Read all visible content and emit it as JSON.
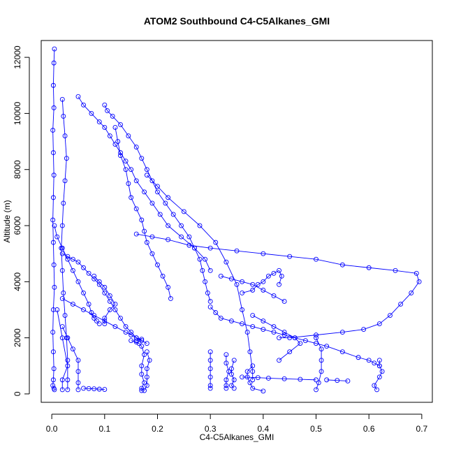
{
  "chart_data": {
    "type": "scatter",
    "title": "ATOM2 Southbound C4-C5Alkanes_GMI",
    "xlabel": "C4-C5Alkanes_GMI",
    "ylabel": "Altitude (m)",
    "xlim": [
      -0.02,
      0.72
    ],
    "ylim": [
      -300,
      12600
    ],
    "xticks": [
      0.0,
      0.1,
      0.2,
      0.3,
      0.4,
      0.5,
      0.6,
      0.7
    ],
    "xtick_labels": [
      "0.0",
      "0.1",
      "0.2",
      "0.3",
      "0.4",
      "0.5",
      "0.6",
      "0.7"
    ],
    "yticks": [
      0,
      2000,
      4000,
      6000,
      8000,
      10000,
      12000
    ],
    "ytick_labels": [
      "0",
      "2000",
      "4000",
      "6000",
      "8000",
      "10000",
      "12000"
    ],
    "grid": false,
    "marker": "open-circle",
    "color": "#0000ff",
    "series": [
      {
        "x": [
          0.005,
          0.004,
          0.003,
          0.004,
          0.002,
          0.003,
          0.004,
          0.003,
          0.002,
          0.003,
          0.004,
          0.005,
          0.003,
          0.002,
          0.003,
          0.004,
          0.003,
          0.002,
          0.004,
          0.005
        ],
        "y": [
          12300,
          11800,
          11000,
          10200,
          9400,
          8600,
          7800,
          7000,
          6200,
          5400,
          4600,
          3800,
          3000,
          2200,
          1500,
          900,
          500,
          300,
          200,
          150
        ]
      },
      {
        "x": [
          0.02,
          0.022,
          0.025,
          0.028,
          0.025,
          0.022,
          0.02,
          0.018,
          0.02,
          0.022,
          0.025,
          0.028,
          0.03,
          0.03,
          0.03
        ],
        "y": [
          10500,
          9900,
          9200,
          8400,
          7600,
          6800,
          6000,
          5200,
          4400,
          3600,
          2800,
          2000,
          1200,
          500,
          150
        ]
      },
      {
        "x": [
          0.05,
          0.06,
          0.075,
          0.09,
          0.1,
          0.11,
          0.12,
          0.13,
          0.14,
          0.15,
          0.16,
          0.175,
          0.19,
          0.205,
          0.22,
          0.245,
          0.27,
          0.29,
          0.3
        ],
        "y": [
          10600,
          10300,
          10000,
          9700,
          9500,
          9200,
          8900,
          8600,
          8300,
          8000,
          7600,
          7200,
          6800,
          6400,
          6000,
          5600,
          5200,
          4800,
          4400
        ]
      },
      {
        "x": [
          0.1,
          0.105,
          0.115,
          0.13,
          0.145,
          0.16,
          0.17,
          0.18,
          0.19,
          0.2,
          0.215,
          0.23,
          0.245,
          0.26,
          0.27,
          0.28,
          0.285,
          0.29,
          0.295,
          0.3
        ],
        "y": [
          10300,
          10100,
          9900,
          9600,
          9200,
          8800,
          8400,
          8000,
          7600,
          7200,
          6800,
          6400,
          6000,
          5600,
          5200,
          4800,
          4400,
          4000,
          3600,
          3300
        ]
      },
      {
        "x": [
          0.12,
          0.125,
          0.13,
          0.14,
          0.145,
          0.15,
          0.16,
          0.17,
          0.175,
          0.18,
          0.19,
          0.2,
          0.21,
          0.22,
          0.225
        ],
        "y": [
          9500,
          9000,
          8500,
          8000,
          7500,
          7000,
          6600,
          6200,
          5800,
          5400,
          5000,
          4600,
          4200,
          3800,
          3400
        ]
      },
      {
        "x": [
          0.18,
          0.2,
          0.22,
          0.25,
          0.28,
          0.31,
          0.33,
          0.35,
          0.36,
          0.37,
          0.375,
          0.38,
          0.38
        ],
        "y": [
          7800,
          7400,
          7000,
          6500,
          6000,
          5400,
          4700,
          3900,
          3000,
          2200,
          1500,
          800,
          500
        ]
      },
      {
        "x": [
          0.16,
          0.19,
          0.22,
          0.26,
          0.3,
          0.35,
          0.4,
          0.45,
          0.5,
          0.55,
          0.6,
          0.65,
          0.69,
          0.695,
          0.68,
          0.66,
          0.64,
          0.62,
          0.59,
          0.55,
          0.5,
          0.45,
          0.43
        ],
        "y": [
          5700,
          5600,
          5500,
          5300,
          5200,
          5100,
          5000,
          4900,
          4800,
          4600,
          4500,
          4400,
          4300,
          4000,
          3600,
          3200,
          2800,
          2500,
          2300,
          2200,
          2100,
          2000,
          2000
        ]
      },
      {
        "x": [
          0.02,
          0.03,
          0.04,
          0.05,
          0.06,
          0.07,
          0.08,
          0.09,
          0.1,
          0.11,
          0.12,
          0.13,
          0.14,
          0.15,
          0.16,
          0.17,
          0.18
        ],
        "y": [
          5000,
          4900,
          4800,
          4700,
          4500,
          4300,
          4100,
          3900,
          3600,
          3300,
          3000,
          2700,
          2400,
          2200,
          2000,
          1900,
          1800
        ]
      },
      {
        "x": [
          0.005,
          0.01,
          0.02,
          0.03,
          0.04,
          0.05,
          0.06,
          0.07,
          0.075,
          0.08,
          0.085,
          0.09
        ],
        "y": [
          6000,
          5600,
          5200,
          4800,
          4400,
          4000,
          3600,
          3200,
          2900,
          2700,
          2600,
          2500
        ]
      },
      {
        "x": [
          0.15,
          0.16,
          0.165,
          0.17,
          0.175,
          0.17,
          0.17,
          0.175,
          0.17,
          0.17
        ],
        "y": [
          1900,
          1850,
          1800,
          1700,
          1400,
          1000,
          700,
          400,
          200,
          120
        ]
      },
      {
        "x": [
          0.18,
          0.185,
          0.18,
          0.18,
          0.18,
          0.175
        ],
        "y": [
          1500,
          1200,
          900,
          600,
          300,
          120
        ]
      },
      {
        "x": [
          0.3,
          0.3,
          0.3,
          0.3,
          0.3,
          0.3
        ],
        "y": [
          1500,
          1200,
          900,
          600,
          300,
          200
        ]
      },
      {
        "x": [
          0.33,
          0.33,
          0.335,
          0.33,
          0.33,
          0.33
        ],
        "y": [
          1400,
          1100,
          800,
          500,
          300,
          200
        ]
      },
      {
        "x": [
          0.345,
          0.34,
          0.34,
          0.345,
          0.34,
          0.345
        ],
        "y": [
          1200,
          900,
          700,
          500,
          300,
          200
        ]
      },
      {
        "x": [
          0.38,
          0.37,
          0.37,
          0.375,
          0.38,
          0.4
        ],
        "y": [
          1000,
          800,
          600,
          400,
          200,
          100
        ]
      },
      {
        "x": [
          0.5,
          0.51,
          0.51,
          0.51,
          0.505,
          0.5
        ],
        "y": [
          2000,
          1600,
          1200,
          800,
          400,
          150
        ]
      },
      {
        "x": [
          0.62,
          0.62,
          0.625,
          0.62,
          0.61,
          0.615
        ],
        "y": [
          1200,
          1000,
          800,
          600,
          300,
          150
        ]
      },
      {
        "x": [
          0.36,
          0.39,
          0.41,
          0.44,
          0.47,
          0.5
        ],
        "y": [
          600,
          580,
          560,
          540,
          520,
          500
        ]
      },
      {
        "x": [
          0.52,
          0.54,
          0.56
        ],
        "y": [
          500,
          480,
          460
        ]
      },
      {
        "x": [
          0.3,
          0.31,
          0.32,
          0.34,
          0.36,
          0.38,
          0.4,
          0.42,
          0.44,
          0.46,
          0.48,
          0.5,
          0.52,
          0.55,
          0.58,
          0.6,
          0.61,
          0.62
        ],
        "y": [
          3100,
          2900,
          2700,
          2600,
          2500,
          2400,
          2300,
          2200,
          2100,
          2000,
          1900,
          1800,
          1700,
          1500,
          1300,
          1200,
          1100,
          1000
        ]
      },
      {
        "x": [
          0.32,
          0.34,
          0.36,
          0.38,
          0.4,
          0.42,
          0.44
        ],
        "y": [
          4200,
          4100,
          4000,
          3900,
          3700,
          3500,
          3300
        ]
      },
      {
        "x": [
          0.36,
          0.38,
          0.39,
          0.4,
          0.41,
          0.42,
          0.43,
          0.435,
          0.43
        ],
        "y": [
          3600,
          3700,
          3900,
          4000,
          4200,
          4300,
          4400,
          4200,
          3900
        ]
      },
      {
        "x": [
          0.38,
          0.4,
          0.42,
          0.44,
          0.46,
          0.47,
          0.45,
          0.43
        ],
        "y": [
          2800,
          2600,
          2400,
          2200,
          2000,
          1800,
          1500,
          1200
        ]
      },
      {
        "x": [
          0.08,
          0.09,
          0.1,
          0.11,
          0.12,
          0.11,
          0.1,
          0.1
        ],
        "y": [
          4200,
          4000,
          3800,
          3500,
          3200,
          3000,
          2700,
          2500
        ]
      },
      {
        "x": [
          0.02,
          0.04,
          0.06,
          0.08,
          0.1,
          0.12,
          0.14,
          0.15,
          0.16,
          0.17,
          0.16
        ],
        "y": [
          3400,
          3200,
          3000,
          2800,
          2600,
          2400,
          2200,
          2100,
          2000,
          1950,
          1900
        ]
      },
      {
        "x": [
          0.02,
          0.03,
          0.04,
          0.05,
          0.05,
          0.05,
          0.05
        ],
        "y": [
          2400,
          2000,
          1600,
          1200,
          800,
          400,
          150
        ]
      },
      {
        "x": [
          0.01,
          0.02,
          0.03,
          0.02,
          0.02
        ],
        "y": [
          3000,
          2000,
          1000,
          500,
          150
        ]
      },
      {
        "x": [
          0.06,
          0.07,
          0.08,
          0.09,
          0.1
        ],
        "y": [
          200,
          190,
          180,
          170,
          160
        ]
      }
    ]
  }
}
